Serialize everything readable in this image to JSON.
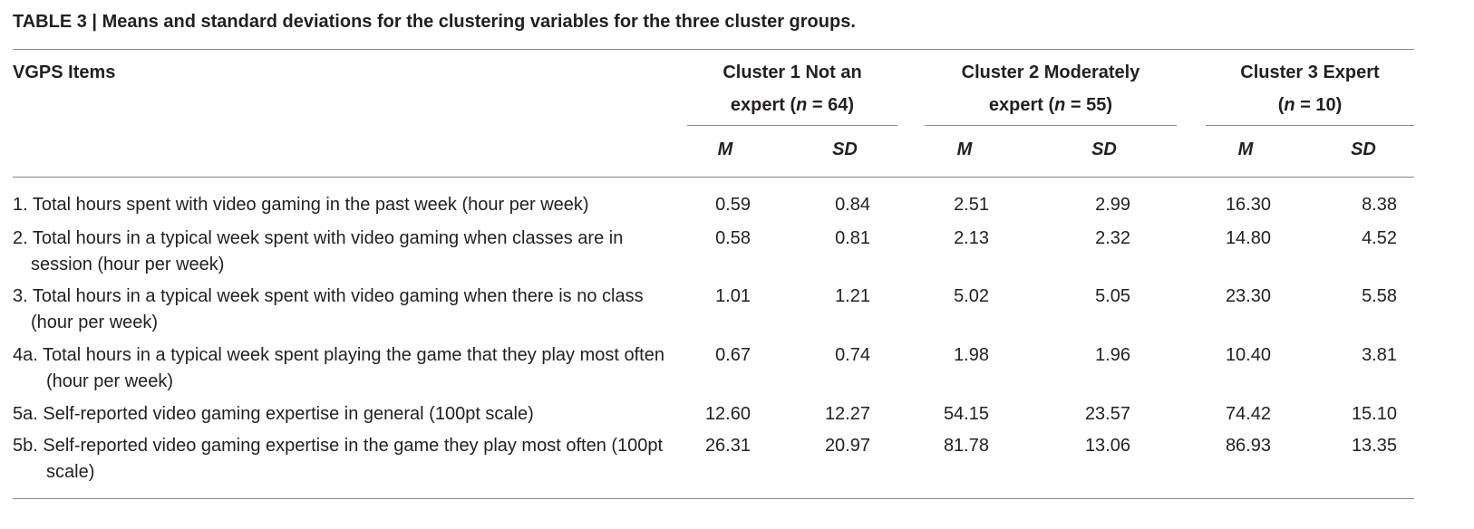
{
  "caption": "TABLE 3 | Means and standard deviations for the clustering variables for the three cluster groups.",
  "header": {
    "items_label": "VGPS Items",
    "clusters": [
      {
        "line1": "Cluster 1 Not an",
        "line2_pre": "expert (",
        "n_var": "n",
        "line2_post": " = 64)"
      },
      {
        "line1": "Cluster 2 Moderately",
        "line2_pre": "expert (",
        "n_var": "n",
        "line2_post": " = 55)"
      },
      {
        "line1": "Cluster 3 Expert",
        "line2_pre": "(",
        "n_var": "n",
        "line2_post": " = 10)"
      }
    ],
    "m_label": "M",
    "sd_label": "SD"
  },
  "rows": [
    {
      "item": "1. Total hours spent with video gaming in the past week (hour per week)",
      "values": [
        "0.59",
        "0.84",
        "2.51",
        "2.99",
        "16.30",
        "8.38"
      ]
    },
    {
      "item": "2. Total hours in a typical week spent with video gaming when classes are in session (hour per week)",
      "values": [
        "0.58",
        "0.81",
        "2.13",
        "2.32",
        "14.80",
        "4.52"
      ]
    },
    {
      "item": "3. Total hours in a typical week spent with video gaming when there is no class (hour per week)",
      "values": [
        "1.01",
        "1.21",
        "5.02",
        "5.05",
        "23.30",
        "5.58"
      ]
    },
    {
      "item": "4a. Total hours in a typical week spent playing the game that they play most often (hour per week)",
      "values": [
        "0.67",
        "0.74",
        "1.98",
        "1.96",
        "10.40",
        "3.81"
      ]
    },
    {
      "item": "5a. Self-reported video gaming expertise in general (100pt scale)",
      "values": [
        "12.60",
        "12.27",
        "54.15",
        "23.57",
        "74.42",
        "15.10"
      ]
    },
    {
      "item": "5b. Self-reported video gaming expertise in the game they play most often (100pt scale)",
      "values": [
        "26.31",
        "20.97",
        "81.78",
        "13.06",
        "86.93",
        "13.35"
      ]
    }
  ]
}
